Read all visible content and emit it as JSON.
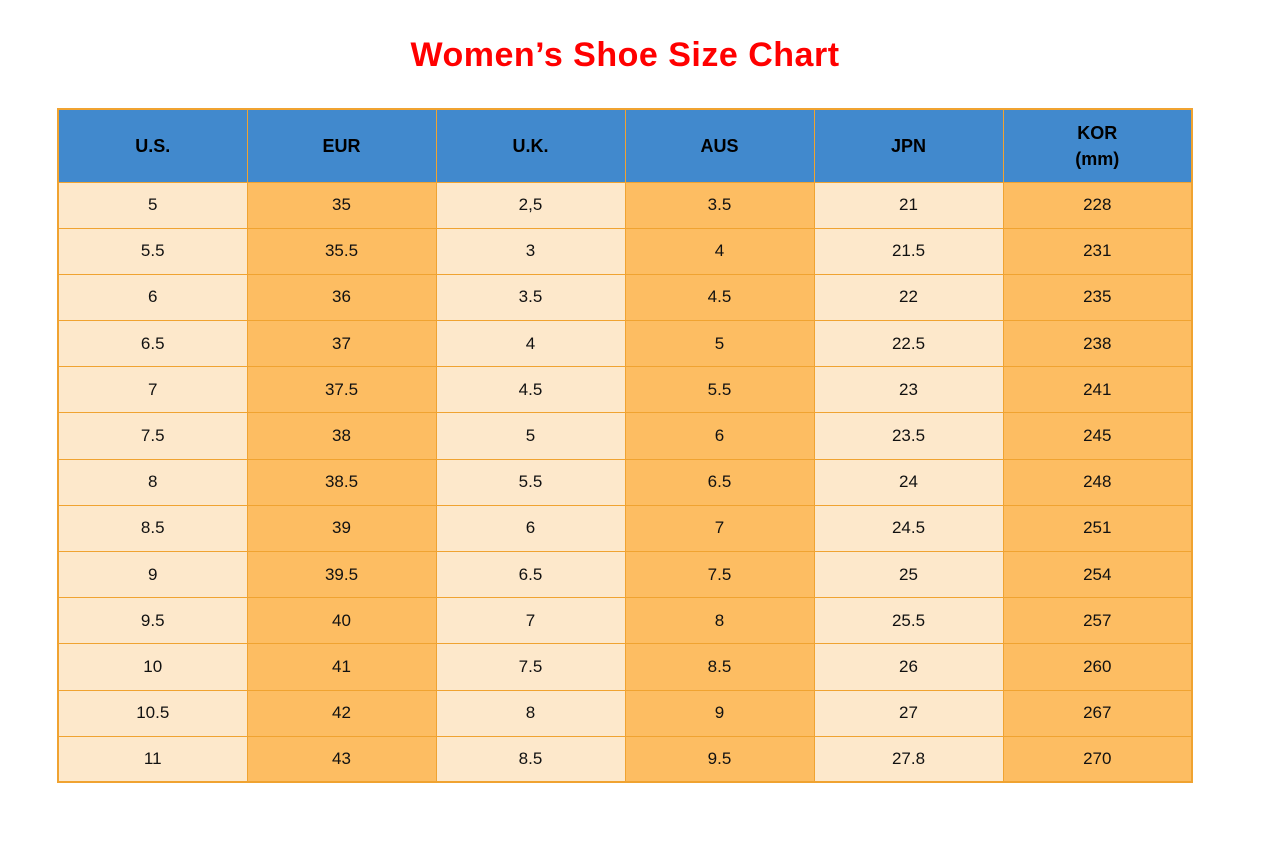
{
  "page": {
    "background": "#ffffff"
  },
  "colors": {
    "title": "#ff0000",
    "header_bg": "#4189cd",
    "border": "#f0a331",
    "cell_text": "#111111",
    "header_text": "#000000",
    "col_cream": "#fde8cb",
    "col_orange": "#fdbd62"
  },
  "chart_data": {
    "type": "table",
    "title": "Women’s Shoe Size Chart",
    "columns": [
      "U.S.",
      "EUR",
      "U.K.",
      "AUS",
      "JPN",
      "KOR\n(mm)"
    ],
    "column_colors": [
      "#fde8cb",
      "#fdbd62",
      "#fde8cb",
      "#fdbd62",
      "#fde8cb",
      "#fdbd62"
    ],
    "rows": [
      [
        "5",
        "35",
        "2,5",
        "3.5",
        "21",
        "228"
      ],
      [
        "5.5",
        "35.5",
        "3",
        "4",
        "21.5",
        "231"
      ],
      [
        "6",
        "36",
        "3.5",
        "4.5",
        "22",
        "235"
      ],
      [
        "6.5",
        "37",
        "4",
        "5",
        "22.5",
        "238"
      ],
      [
        "7",
        "37.5",
        "4.5",
        "5.5",
        "23",
        "241"
      ],
      [
        "7.5",
        "38",
        "5",
        "6",
        "23.5",
        "245"
      ],
      [
        "8",
        "38.5",
        "5.5",
        "6.5",
        "24",
        "248"
      ],
      [
        "8.5",
        "39",
        "6",
        "7",
        "24.5",
        "251"
      ],
      [
        "9",
        "39.5",
        "6.5",
        "7.5",
        "25",
        "254"
      ],
      [
        "9.5",
        "40",
        "7",
        "8",
        "25.5",
        "257"
      ],
      [
        "10",
        "41",
        "7.5",
        "8.5",
        "26",
        "260"
      ],
      [
        "10.5",
        "42",
        "8",
        "9",
        "27",
        "267"
      ],
      [
        "11",
        "43",
        "8.5",
        "9.5",
        "27.8",
        "270"
      ]
    ]
  }
}
